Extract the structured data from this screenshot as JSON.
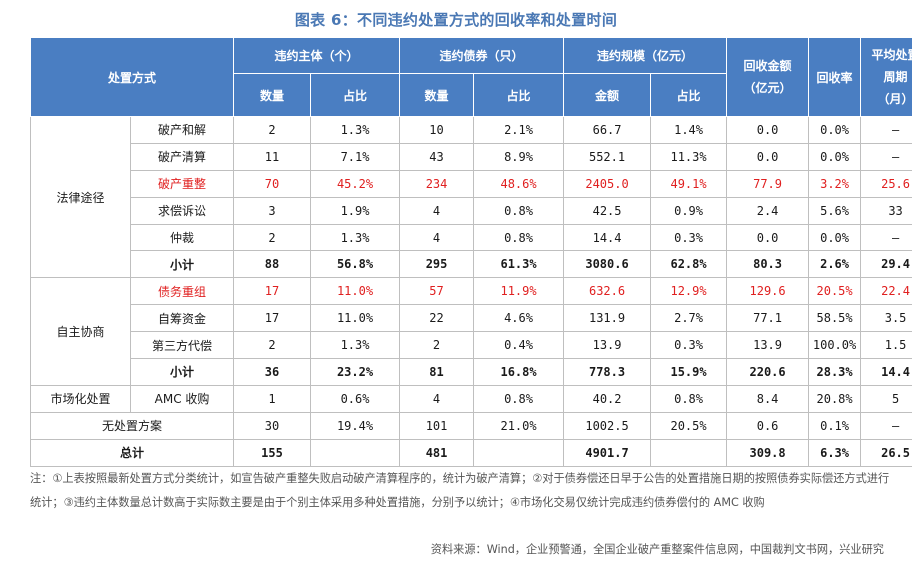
{
  "title": "图表 6：不同违约处置方式的回收率和处置时间",
  "headers": {
    "method": "处置方式",
    "group_entities": "违约主体（个）",
    "group_bonds": "违约债券（只）",
    "group_scale": "违约规模（亿元）",
    "recovery_amount": [
      "回收金额",
      "（亿元）"
    ],
    "recovery_rate": "回收率",
    "avg_period": [
      "平均处置",
      "周期",
      "（月）"
    ],
    "count": "数量",
    "share": "占比",
    "amount": "金额"
  },
  "groups": {
    "legal": "法律途径",
    "negotiation": "自主协商",
    "market": "市场化处置"
  },
  "rows": [
    {
      "sub": "破产和解",
      "cells": [
        "2",
        "1.3%",
        "10",
        "2.1%",
        "66.7",
        "1.4%",
        "0.0",
        "0.0%",
        "–"
      ]
    },
    {
      "sub": "破产清算",
      "cells": [
        "11",
        "7.1%",
        "43",
        "8.9%",
        "552.1",
        "11.3%",
        "0.0",
        "0.0%",
        "–"
      ]
    },
    {
      "sub": "破产重整",
      "cells": [
        "70",
        "45.2%",
        "234",
        "48.6%",
        "2405.0",
        "49.1%",
        "77.9",
        "3.2%",
        "25.6"
      ]
    },
    {
      "sub": "求偿诉讼",
      "cells": [
        "3",
        "1.9%",
        "4",
        "0.8%",
        "42.5",
        "0.9%",
        "2.4",
        "5.6%",
        "33"
      ]
    },
    {
      "sub": "仲裁",
      "cells": [
        "2",
        "1.3%",
        "4",
        "0.8%",
        "14.4",
        "0.3%",
        "0.0",
        "0.0%",
        "–"
      ]
    },
    {
      "sub": "小计",
      "cells": [
        "88",
        "56.8%",
        "295",
        "61.3%",
        "3080.6",
        "62.8%",
        "80.3",
        "2.6%",
        "29.4"
      ]
    },
    {
      "sub": "债务重组",
      "cells": [
        "17",
        "11.0%",
        "57",
        "11.9%",
        "632.6",
        "12.9%",
        "129.6",
        "20.5%",
        "22.4"
      ]
    },
    {
      "sub": "自筹资金",
      "cells": [
        "17",
        "11.0%",
        "22",
        "4.6%",
        "131.9",
        "2.7%",
        "77.1",
        "58.5%",
        "3.5"
      ]
    },
    {
      "sub": "第三方代偿",
      "cells": [
        "2",
        "1.3%",
        "2",
        "0.4%",
        "13.9",
        "0.3%",
        "13.9",
        "100.0%",
        "1.5"
      ]
    },
    {
      "sub": "小计",
      "cells": [
        "36",
        "23.2%",
        "81",
        "16.8%",
        "778.3",
        "15.9%",
        "220.6",
        "28.3%",
        "14.4"
      ]
    },
    {
      "sub": "AMC 收购",
      "cells": [
        "1",
        "0.6%",
        "4",
        "0.8%",
        "40.2",
        "0.8%",
        "8.4",
        "20.8%",
        "5"
      ]
    },
    {
      "sub": "无处置方案",
      "cells": [
        "30",
        "19.4%",
        "101",
        "21.0%",
        "1002.5",
        "20.5%",
        "0.6",
        "0.1%",
        "–"
      ]
    },
    {
      "sub": "总计",
      "cells": [
        "155",
        "",
        "481",
        "",
        "4901.7",
        "",
        "309.8",
        "6.3%",
        "26.5"
      ]
    }
  ],
  "note": "注：①上表按照最新处置方式分类统计，如宣告破产重整失败启动破产清算程序的，统计为破产清算；②对于债券偿还日早于公告的处置措施日期的按照债券实际偿还方式进行统计；③违约主体数量总计数高于实际数主要是由于个别主体采用多种处置措施，分别予以统计；④市场化交易仅统计完成违约债券偿付的 AMC 收购",
  "source": "资料来源：Wind，企业预警通，全国企业破产重整案件信息网，中国裁判文书网，兴业研究"
}
